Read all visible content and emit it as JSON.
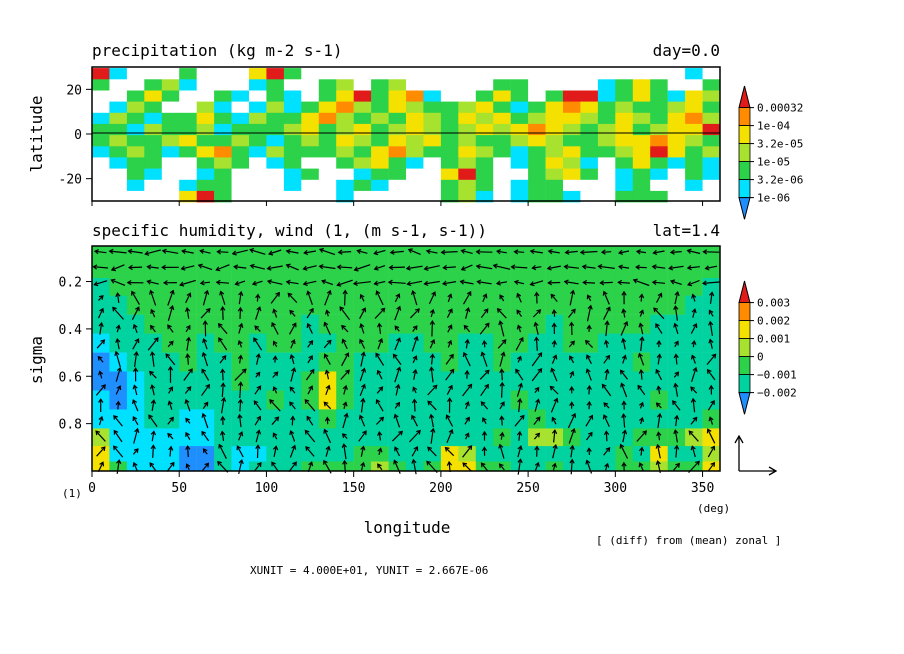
{
  "colors": {
    "levels": [
      "#ffffff",
      "#1f8fff",
      "#00e0ff",
      "#00d2a0",
      "#2bd24a",
      "#a6e22e",
      "#f5e100",
      "#ff8c00",
      "#e11a1a"
    ],
    "frame": "#000000"
  },
  "chart_data": [
    {
      "type": "heatmap",
      "title": "precipitation (kg m-2 s-1)",
      "right_title": "day=0.0",
      "ylabel": "latitude",
      "xlim": [
        0,
        360
      ],
      "ylim": [
        -30,
        30
      ],
      "yticks": [
        20,
        0,
        -20
      ],
      "colorbar": {
        "labels": [
          "0.00032",
          "1e-04",
          "3.2e-05",
          "1e-05",
          "3.2e-06",
          "1e-06"
        ]
      },
      "bands": [
        {
          "lat": 27,
          "values": [
            0.9,
            0.2,
            0,
            0,
            0,
            0.3,
            0,
            0,
            0,
            0.6,
            0.9,
            0.3,
            0,
            0,
            0,
            0,
            0,
            0,
            0,
            0,
            0,
            0,
            0,
            0,
            0,
            0,
            0,
            0,
            0,
            0,
            0,
            0,
            0,
            0,
            0.2,
            0.1
          ]
        },
        {
          "lat": 22,
          "values": [
            0.4,
            0.1,
            0,
            0.3,
            0.5,
            0.2,
            0,
            0,
            0,
            0.2,
            0.3,
            0,
            0,
            0.4,
            0.5,
            0,
            0.3,
            0.5,
            0,
            0,
            0,
            0,
            0,
            0.3,
            0.4,
            0,
            0,
            0,
            0,
            0.2,
            0.4,
            0.6,
            0.3,
            0,
            0.1,
            0.3
          ]
        },
        {
          "lat": 17,
          "values": [
            0.1,
            0,
            0.3,
            0.6,
            0.4,
            0,
            0,
            0.3,
            0.2,
            0,
            0.4,
            0.2,
            0,
            0.3,
            0.7,
            0.9,
            0.4,
            0.7,
            0.8,
            0.2,
            0,
            0,
            0.4,
            0.6,
            0.3,
            0,
            0.3,
            0.9,
            1,
            0.2,
            0.4,
            0.7,
            0.4,
            0.2,
            0.6,
            0.5
          ]
        },
        {
          "lat": 12,
          "values": [
            0,
            0.2,
            0.5,
            0.3,
            0,
            0.1,
            0.5,
            0.2,
            0,
            0.2,
            0.5,
            0.2,
            0.3,
            0.6,
            0.8,
            0.5,
            0.3,
            0.6,
            0.5,
            0.3,
            0.3,
            0.5,
            0.6,
            0.3,
            0.2,
            0.4,
            0.6,
            0.8,
            0.6,
            0.3,
            0.5,
            0.4,
            0.3,
            0.5,
            0.7,
            0.4
          ]
        },
        {
          "lat": 7,
          "values": [
            0.2,
            0.5,
            0.3,
            0.2,
            0.4,
            0.3,
            0.6,
            0.3,
            0.2,
            0.5,
            0.4,
            0.3,
            0.6,
            0.8,
            0.5,
            0.3,
            0.5,
            0.4,
            0.6,
            0.5,
            0.4,
            0.6,
            0.5,
            0.7,
            0.4,
            0.5,
            0.6,
            0.7,
            0.5,
            0.4,
            0.6,
            0.5,
            0.4,
            0.6,
            0.8,
            0.5
          ]
        },
        {
          "lat": 2,
          "values": [
            0.4,
            0.3,
            0.2,
            0.5,
            0.3,
            0.4,
            0.5,
            0.2,
            0.3,
            0.4,
            0.3,
            0.5,
            0.6,
            0.4,
            0.5,
            0.6,
            0.4,
            0.5,
            0.7,
            0.5,
            0.4,
            0.5,
            0.6,
            0.5,
            0.7,
            0.8,
            0.6,
            0.5,
            0.4,
            0.5,
            0.6,
            0.4,
            0.5,
            0.7,
            0.6,
            0.9
          ]
        },
        {
          "lat": -3,
          "values": [
            0.3,
            0.5,
            0.4,
            0.3,
            0.5,
            0.6,
            0.3,
            0.4,
            0.5,
            0.3,
            0.2,
            0.4,
            0.5,
            0.3,
            0.6,
            0.5,
            0.4,
            0.7,
            0.5,
            0.6,
            0.4,
            0.5,
            0.3,
            0.4,
            0.5,
            0.6,
            0.5,
            0.4,
            0.3,
            0.5,
            0.6,
            0.7,
            0.8,
            0.6,
            0.5,
            0.4
          ]
        },
        {
          "lat": -8,
          "values": [
            0.2,
            0.3,
            0.5,
            0.3,
            0.2,
            0.4,
            0.6,
            0.8,
            0.3,
            0.2,
            0.5,
            0.3,
            0.4,
            0.3,
            0.5,
            0.4,
            0.7,
            0.8,
            0.5,
            0.3,
            0.4,
            0.6,
            0.5,
            0.3,
            0.2,
            0.4,
            0.5,
            0.6,
            0.4,
            0.3,
            0.5,
            0.7,
            0.9,
            0.6,
            0.4,
            0.5
          ]
        },
        {
          "lat": -13,
          "values": [
            0,
            0.2,
            0.4,
            0.3,
            0.1,
            0,
            0.3,
            0.5,
            0.3,
            0,
            0.2,
            0.3,
            0.1,
            0,
            0.3,
            0.5,
            0.7,
            0.4,
            0.2,
            0,
            0.3,
            0.5,
            0.3,
            0,
            0.2,
            0.4,
            0.6,
            0.5,
            0.2,
            0,
            0.3,
            0.6,
            0.4,
            0.2,
            0.3,
            0.2
          ]
        },
        {
          "lat": -18,
          "values": [
            0,
            0.1,
            0.3,
            0.2,
            0,
            0,
            0.2,
            0.3,
            0.1,
            0,
            0,
            0.2,
            0.3,
            0,
            0,
            0.2,
            0.4,
            0.3,
            0,
            0,
            0.6,
            0.9,
            0.4,
            0,
            0,
            0.3,
            0.5,
            0.7,
            0.3,
            0,
            0.2,
            0.3,
            0.2,
            0,
            0.3,
            0.2
          ]
        },
        {
          "lat": -23,
          "values": [
            0,
            0,
            0.2,
            0,
            0,
            0.2,
            0.4,
            0.3,
            0,
            0,
            0.1,
            0.2,
            0,
            0,
            0.2,
            0.3,
            0.2,
            0,
            0,
            0,
            0.3,
            0.5,
            0.3,
            0,
            0.2,
            0.4,
            0.3,
            0.1,
            0,
            0,
            0.2,
            0.3,
            0.1,
            0,
            0.2,
            0.1
          ]
        },
        {
          "lat": -28,
          "values": [
            0,
            0,
            0,
            0,
            0,
            0.7,
            0.9,
            0.3,
            0,
            0,
            0,
            0,
            0,
            0,
            0.2,
            0,
            0,
            0,
            0,
            0,
            0.3,
            0.5,
            0.2,
            0,
            0.2,
            0.3,
            0.4,
            0.2,
            0,
            0,
            0.3,
            0.4,
            0.3,
            0,
            0,
            0
          ]
        }
      ]
    },
    {
      "type": "heatmap",
      "title": "specific humidity, wind (1, (m s-1, s-1))",
      "right_title": "lat=1.4",
      "xlabel": "longitude",
      "ylabel": "sigma",
      "xlim": [
        0,
        360
      ],
      "ylim": [
        1.0,
        0.05
      ],
      "xticks": [
        "0",
        "50",
        "100",
        "150",
        "200",
        "250",
        "300",
        "350"
      ],
      "yticks": [
        "0.2",
        "0.4",
        "0.6",
        "0.8"
      ],
      "x_unit_label": "(deg)",
      "corner_label": "(1)",
      "colorbar": {
        "labels": [
          "0.003",
          "0.002",
          "0.001",
          "0",
          "−0.001",
          "−0.002"
        ]
      },
      "annotation": "[ (diff) from (mean) zonal ]",
      "footer": "XUNIT = 4.000E+01, YUNIT = 2.667E-06",
      "rows": [
        {
          "sigma": 0.08,
          "values": [
            4,
            4,
            4,
            4,
            4,
            4,
            4,
            4,
            4,
            4,
            4,
            4,
            4,
            4,
            4,
            4,
            4,
            4,
            4,
            4,
            4,
            4,
            4,
            4,
            4,
            4,
            4,
            4,
            4,
            4,
            4,
            4,
            4,
            4,
            4,
            4
          ]
        },
        {
          "sigma": 0.15,
          "values": [
            4,
            4,
            4,
            4,
            4,
            4,
            4,
            4,
            4,
            4,
            4,
            4,
            4,
            4,
            4,
            4,
            4,
            4,
            4,
            4,
            4,
            4,
            4,
            4,
            4,
            4,
            4,
            4,
            4,
            4,
            4,
            4,
            4,
            4,
            4,
            4
          ]
        },
        {
          "sigma": 0.22,
          "values": [
            3,
            4,
            4,
            4,
            4,
            4,
            4,
            4,
            4,
            4,
            4,
            4,
            4,
            4,
            4,
            4,
            4,
            4,
            4,
            4,
            4,
            4,
            4,
            4,
            4,
            4,
            4,
            4,
            4,
            4,
            4,
            4,
            4,
            4,
            4,
            3
          ]
        },
        {
          "sigma": 0.3,
          "values": [
            3,
            3,
            4,
            4,
            4,
            4,
            4,
            4,
            4,
            4,
            4,
            4,
            4,
            4,
            4,
            4,
            4,
            4,
            4,
            4,
            4,
            4,
            4,
            4,
            4,
            4,
            4,
            4,
            4,
            4,
            4,
            4,
            4,
            4,
            3,
            3
          ]
        },
        {
          "sigma": 0.38,
          "values": [
            3,
            3,
            3,
            4,
            4,
            4,
            4,
            4,
            4,
            4,
            4,
            4,
            3,
            4,
            4,
            4,
            4,
            4,
            4,
            4,
            4,
            4,
            4,
            4,
            4,
            4,
            3,
            4,
            4,
            4,
            4,
            4,
            3,
            3,
            3,
            3
          ]
        },
        {
          "sigma": 0.46,
          "values": [
            2,
            3,
            3,
            3,
            4,
            4,
            3,
            4,
            4,
            3,
            4,
            4,
            3,
            3,
            4,
            4,
            4,
            3,
            3,
            4,
            4,
            3,
            3,
            4,
            4,
            3,
            3,
            4,
            4,
            3,
            3,
            3,
            3,
            3,
            3,
            3
          ]
        },
        {
          "sigma": 0.54,
          "values": [
            1,
            2,
            3,
            3,
            3,
            4,
            3,
            3,
            4,
            3,
            3,
            3,
            3,
            4,
            4,
            3,
            3,
            3,
            3,
            3,
            4,
            3,
            3,
            4,
            3,
            3,
            3,
            3,
            3,
            3,
            3,
            4,
            3,
            3,
            3,
            3
          ]
        },
        {
          "sigma": 0.62,
          "values": [
            1,
            1,
            2,
            3,
            3,
            3,
            3,
            3,
            4,
            3,
            3,
            3,
            4,
            6,
            4,
            3,
            3,
            3,
            3,
            3,
            3,
            3,
            3,
            3,
            3,
            3,
            3,
            3,
            3,
            3,
            3,
            3,
            3,
            3,
            3,
            3
          ]
        },
        {
          "sigma": 0.7,
          "values": [
            2,
            1,
            2,
            3,
            3,
            3,
            3,
            3,
            3,
            3,
            4,
            3,
            4,
            6,
            4,
            3,
            3,
            3,
            3,
            3,
            3,
            3,
            3,
            3,
            4,
            3,
            3,
            3,
            3,
            3,
            3,
            3,
            4,
            3,
            3,
            3
          ]
        },
        {
          "sigma": 0.78,
          "values": [
            2,
            2,
            2,
            3,
            3,
            2,
            2,
            3,
            3,
            3,
            3,
            3,
            3,
            4,
            3,
            3,
            3,
            3,
            3,
            3,
            3,
            3,
            3,
            3,
            3,
            4,
            3,
            3,
            3,
            3,
            3,
            3,
            3,
            3,
            3,
            4
          ]
        },
        {
          "sigma": 0.86,
          "values": [
            5,
            2,
            2,
            2,
            2,
            2,
            2,
            3,
            3,
            3,
            3,
            3,
            3,
            3,
            3,
            3,
            3,
            3,
            3,
            3,
            3,
            3,
            3,
            4,
            3,
            5,
            5,
            4,
            3,
            3,
            3,
            4,
            4,
            4,
            5,
            6
          ]
        },
        {
          "sigma": 0.93,
          "values": [
            6,
            2,
            2,
            2,
            2,
            1,
            1,
            3,
            2,
            2,
            3,
            3,
            3,
            3,
            3,
            4,
            4,
            3,
            3,
            3,
            6,
            5,
            3,
            3,
            3,
            3,
            3,
            3,
            3,
            3,
            4,
            3,
            6,
            3,
            3,
            5
          ]
        },
        {
          "sigma": 0.99,
          "values": [
            6,
            4,
            2,
            2,
            2,
            1,
            1,
            3,
            2,
            3,
            3,
            3,
            4,
            4,
            4,
            4,
            5,
            4,
            3,
            4,
            6,
            6,
            4,
            4,
            3,
            3,
            4,
            3,
            3,
            3,
            4,
            4,
            5,
            4,
            4,
            6
          ]
        }
      ],
      "wind_field_note": ""
    }
  ]
}
